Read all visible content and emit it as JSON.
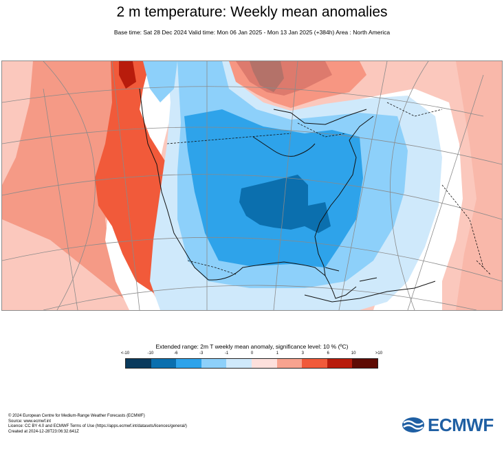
{
  "title": "2 m temperature: Weekly mean anomalies",
  "subtitle": "Base time: Sat 28 Dec 2024 Valid time: Mon 06 Jan 2025 - Mon 13 Jan 2025 (+384h) Area : North America",
  "legend": {
    "title": "Extended range: 2m T weekly mean anomaly, significance level: 10 % (ºC)",
    "ticks": [
      "<-10",
      "-10",
      "-6",
      "-3",
      "-1",
      "0",
      "1",
      "3",
      "6",
      "10",
      ">10"
    ],
    "colors": [
      "#0a3a5c",
      "#0b6fae",
      "#2ea3ea",
      "#8dd0fa",
      "#cfe9fb",
      "#fde0dc",
      "#f8a38f",
      "#f15a3a",
      "#b81c0c",
      "#5e0b04"
    ]
  },
  "credits": [
    "© 2024 European Centre for Medium-Range Weather Forecasts (ECMWF)",
    "Source: www.ecmwf.int",
    "Licence: CC BY 4.0 and ECMWF Terms of Use (https://apps.ecmwf.int/datasets/licences/general/)",
    "Created at 2024-12-28T23:06:32.641Z"
  ],
  "logo_text": "ECMWF",
  "colors": {
    "map_pink": "#fbc8bd",
    "map_salmon": "#f59a86",
    "map_red": "#f15a3a",
    "map_darkred": "#b81c0c",
    "map_lightblue": "#cfe9fb",
    "map_blue": "#8dd0fa",
    "map_midblue": "#2ea3ea",
    "map_darkblue": "#0b6fae",
    "logo_blue": "#1f5fa3"
  }
}
